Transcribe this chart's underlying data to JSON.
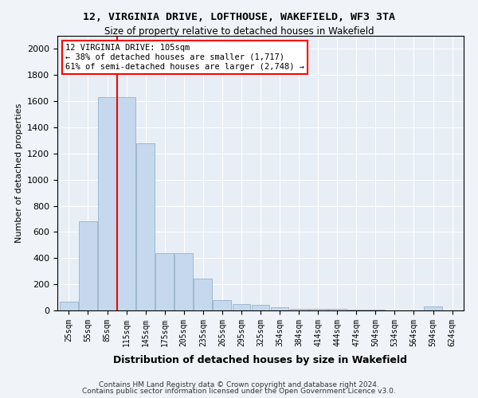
{
  "title1": "12, VIRGINIA DRIVE, LOFTHOUSE, WAKEFIELD, WF3 3TA",
  "title2": "Size of property relative to detached houses in Wakefield",
  "xlabel": "Distribution of detached houses by size in Wakefield",
  "ylabel": "Number of detached properties",
  "bin_labels": [
    "25sqm",
    "55sqm",
    "85sqm",
    "115sqm",
    "145sqm",
    "175sqm",
    "205sqm",
    "235sqm",
    "265sqm",
    "295sqm",
    "325sqm",
    "354sqm",
    "384sqm",
    "414sqm",
    "444sqm",
    "474sqm",
    "504sqm",
    "534sqm",
    "564sqm",
    "594sqm",
    "624sqm"
  ],
  "bar_heights": [
    65,
    680,
    1630,
    1630,
    1280,
    440,
    440,
    245,
    80,
    50,
    40,
    25,
    15,
    10,
    10,
    5,
    5,
    0,
    0,
    30,
    0
  ],
  "bar_color": "#c5d8ed",
  "bar_edge_color": "#a0b8d0",
  "vline_x_index": 3,
  "vline_color": "red",
  "annotation_text": "12 VIRGINIA DRIVE: 105sqm\n← 38% of detached houses are smaller (1,717)\n61% of semi-detached houses are larger (2,748) →",
  "annotation_box_color": "white",
  "annotation_box_edge": "red",
  "ylim": [
    0,
    2100
  ],
  "yticks": [
    0,
    200,
    400,
    600,
    800,
    1000,
    1200,
    1400,
    1600,
    1800,
    2000
  ],
  "footer1": "Contains HM Land Registry data © Crown copyright and database right 2024.",
  "footer2": "Contains public sector information licensed under the Open Government Licence v3.0.",
  "bg_color": "#f0f4f8",
  "plot_bg_color": "#e8eef5"
}
